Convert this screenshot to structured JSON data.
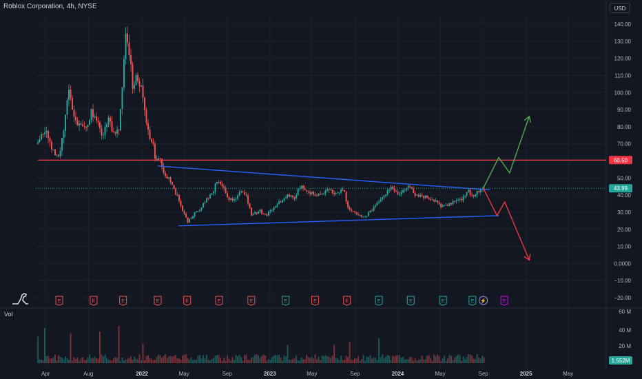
{
  "header": {
    "title": "Roblox Corporation, 4h, NYSE",
    "currency": "USD"
  },
  "volume": {
    "label": "Vol",
    "last_label": "1.552M",
    "axis_ticks": [
      "60 M",
      "40 M",
      "20 M"
    ]
  },
  "colors": {
    "bg": "#131722",
    "grid": "#1e222d",
    "up": "#26a69a",
    "down": "#ef5350",
    "trendline": "#2962ff",
    "resistance": "#f23645",
    "projection_up": "#4caf50",
    "projection_down": "#f23645"
  },
  "chart_data": {
    "type": "candlestick",
    "title": "Roblox Corporation, 4h, NYSE",
    "ylim": [
      -20,
      145
    ],
    "y_ticks": [
      "140.00",
      "130.00",
      "120.00",
      "110.00",
      "100.00",
      "90.00",
      "80.00",
      "70.00",
      "60.00",
      "50.00",
      "40.00",
      "30.00",
      "20.00",
      "10.00",
      "0.0000",
      "−10.00",
      "−20.00"
    ],
    "x_ticks": [
      "Apr",
      "Aug",
      "2022",
      "May",
      "Sep",
      "2023",
      "May",
      "Sep",
      "2024",
      "May",
      "Sep",
      "2025",
      "May"
    ],
    "last_price_label": "43.99",
    "last_price": 43.99,
    "resistance": {
      "label": "60.50",
      "value": 60.5
    },
    "price_path": [
      [
        "2021-03-10",
        70
      ],
      [
        "2021-04-01",
        78
      ],
      [
        "2021-04-20",
        66
      ],
      [
        "2021-05-12",
        63
      ],
      [
        "2021-06-05",
        100
      ],
      [
        "2021-06-25",
        83
      ],
      [
        "2021-07-20",
        78
      ],
      [
        "2021-08-10",
        88
      ],
      [
        "2021-08-25",
        82
      ],
      [
        "2021-09-10",
        75
      ],
      [
        "2021-09-25",
        85
      ],
      [
        "2021-10-12",
        76
      ],
      [
        "2021-10-28",
        80
      ],
      [
        "2021-11-05",
        98
      ],
      [
        "2021-11-16",
        138
      ],
      [
        "2021-11-26",
        122
      ],
      [
        "2021-12-05",
        105
      ],
      [
        "2021-12-18",
        108
      ],
      [
        "2022-01-01",
        103
      ],
      [
        "2022-01-15",
        80
      ],
      [
        "2022-02-01",
        70
      ],
      [
        "2022-02-10",
        58
      ],
      [
        "2022-02-20",
        62
      ],
      [
        "2022-03-05",
        52
      ],
      [
        "2022-03-25",
        48
      ],
      [
        "2022-04-10",
        40
      ],
      [
        "2022-04-25",
        32
      ],
      [
        "2022-05-12",
        24
      ],
      [
        "2022-06-01",
        30
      ],
      [
        "2022-06-20",
        33
      ],
      [
        "2022-07-05",
        38
      ],
      [
        "2022-07-20",
        40
      ],
      [
        "2022-08-05",
        50
      ],
      [
        "2022-08-20",
        44
      ],
      [
        "2022-09-05",
        38
      ],
      [
        "2022-09-25",
        37
      ],
      [
        "2022-10-10",
        42
      ],
      [
        "2022-10-25",
        40
      ],
      [
        "2022-11-10",
        28
      ],
      [
        "2022-12-01",
        31
      ],
      [
        "2022-12-20",
        28
      ],
      [
        "2023-01-10",
        32
      ],
      [
        "2023-01-31",
        36
      ],
      [
        "2023-02-20",
        40
      ],
      [
        "2023-03-10",
        38
      ],
      [
        "2023-04-01",
        46
      ],
      [
        "2023-04-20",
        42
      ],
      [
        "2023-05-10",
        40
      ],
      [
        "2023-06-01",
        41
      ],
      [
        "2023-06-20",
        43
      ],
      [
        "2023-07-10",
        41
      ],
      [
        "2023-08-01",
        44
      ],
      [
        "2023-08-10",
        33
      ],
      [
        "2023-08-25",
        31
      ],
      [
        "2023-09-15",
        28
      ],
      [
        "2023-10-05",
        28
      ],
      [
        "2023-10-25",
        33
      ],
      [
        "2023-11-10",
        37
      ],
      [
        "2023-11-25",
        40
      ],
      [
        "2023-12-10",
        44
      ],
      [
        "2024-01-05",
        41
      ],
      [
        "2024-01-25",
        43
      ],
      [
        "2024-02-05",
        46
      ],
      [
        "2024-02-20",
        40
      ],
      [
        "2024-03-10",
        39
      ],
      [
        "2024-04-01",
        38
      ],
      [
        "2024-04-20",
        36
      ],
      [
        "2024-05-05",
        33
      ],
      [
        "2024-05-20",
        34
      ],
      [
        "2024-06-10",
        36
      ],
      [
        "2024-07-01",
        38
      ],
      [
        "2024-07-20",
        42
      ],
      [
        "2024-08-05",
        39
      ],
      [
        "2024-08-20",
        43
      ],
      [
        "2024-09-03",
        44
      ]
    ],
    "lines": [
      {
        "name": "resistance",
        "x": [
          "2021-03-10",
          "2025-09-30"
        ],
        "y": [
          60.5,
          60.5
        ]
      },
      {
        "name": "upper-trendline",
        "x": [
          "2022-02-15",
          "2024-09-20"
        ],
        "y": [
          57,
          43
        ]
      },
      {
        "name": "lower-trendline",
        "x": [
          "2022-04-15",
          "2024-10-15"
        ],
        "y": [
          22,
          28
        ]
      },
      {
        "name": "bullish-projection",
        "x": [
          "2024-09-01",
          "2024-10-15",
          "2024-11-15",
          "2025-01-10"
        ],
        "y": [
          44,
          62,
          53,
          86
        ]
      },
      {
        "name": "bearish-projection",
        "x": [
          "2024-09-01",
          "2024-10-10",
          "2024-11-01",
          "2025-01-10"
        ],
        "y": [
          44,
          28,
          36,
          2
        ]
      }
    ],
    "earnings_markers": [
      {
        "date": "2021-05-10",
        "kind": "down",
        "label": "E"
      },
      {
        "date": "2021-08-16",
        "kind": "down",
        "label": "E"
      },
      {
        "date": "2021-11-08",
        "kind": "down",
        "label": "E"
      },
      {
        "date": "2022-02-15",
        "kind": "down",
        "label": "E"
      },
      {
        "date": "2022-05-10",
        "kind": "down",
        "label": "E"
      },
      {
        "date": "2022-08-09",
        "kind": "down",
        "label": "E"
      },
      {
        "date": "2022-11-09",
        "kind": "down",
        "label": "E"
      },
      {
        "date": "2023-02-15",
        "kind": "up",
        "label": "E"
      },
      {
        "date": "2023-05-10",
        "kind": "down",
        "label": "E"
      },
      {
        "date": "2023-08-09",
        "kind": "down",
        "label": "E"
      },
      {
        "date": "2023-11-08",
        "kind": "up",
        "label": "E"
      },
      {
        "date": "2024-02-07",
        "kind": "up",
        "label": "E"
      },
      {
        "date": "2024-05-09",
        "kind": "up",
        "label": "E"
      },
      {
        "date": "2024-08-01",
        "kind": "up",
        "label": "E"
      },
      {
        "date": "2024-09-01",
        "kind": "split",
        "label": "⚡"
      },
      {
        "date": "2024-10-31",
        "kind": "future",
        "label": "E"
      }
    ]
  }
}
